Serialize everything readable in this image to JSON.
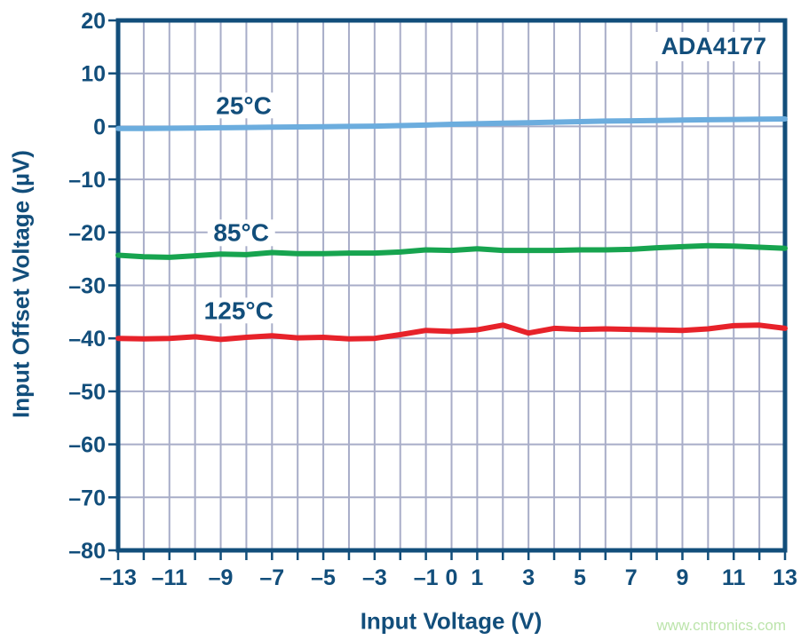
{
  "watermark": {
    "text": "www.cntronics.com",
    "color": "#bce4ab"
  },
  "chart_data": {
    "type": "line",
    "title": "ADA4177",
    "xlabel": "Input Voltage (V)",
    "ylabel": "Input Offset Voltage (µV)",
    "xlim": [
      -13,
      13
    ],
    "ylim": [
      -80,
      20
    ],
    "grid": {
      "on": true,
      "x_step": 1,
      "y_step": 10,
      "color": "#a8adc8"
    },
    "axis_color": "#124e7b",
    "legend": "inline-labels",
    "x_tick_values": [
      -13,
      -11,
      -9,
      -7,
      -5,
      -3,
      -1,
      0,
      1,
      3,
      5,
      7,
      9,
      11,
      13
    ],
    "x_tick_labels": [
      "–13",
      "–11",
      "–9",
      "–7",
      "–5",
      "–3",
      "–1",
      "0",
      "1",
      "3",
      "5",
      "7",
      "9",
      "11",
      "13"
    ],
    "y_tick_values": [
      20,
      10,
      0,
      -10,
      -20,
      -30,
      -40,
      -50,
      -60,
      -70,
      -80
    ],
    "y_tick_labels": [
      "20",
      "10",
      "0",
      "–10",
      "–20",
      "–30",
      "–40",
      "–50",
      "–60",
      "–70",
      "–80"
    ],
    "x": [
      -13,
      -12,
      -11,
      -10,
      -9,
      -8,
      -7,
      -6,
      -5,
      -4,
      -3,
      -2,
      -1,
      0,
      1,
      2,
      3,
      4,
      5,
      6,
      7,
      8,
      9,
      10,
      11,
      12,
      13
    ],
    "series": [
      {
        "name": "25°C",
        "color": "#6cadde",
        "label_anchor": {
          "x": -8.1,
          "y": 4.0
        },
        "values": [
          -0.4,
          -0.4,
          -0.35,
          -0.3,
          -0.25,
          -0.2,
          -0.15,
          -0.1,
          -0.05,
          0.0,
          0.05,
          0.15,
          0.25,
          0.4,
          0.5,
          0.6,
          0.7,
          0.8,
          0.9,
          1.0,
          1.05,
          1.1,
          1.2,
          1.25,
          1.3,
          1.35,
          1.4
        ]
      },
      {
        "name": "85°C",
        "color": "#17a44f",
        "label_anchor": {
          "x": -8.2,
          "y": -20.1
        },
        "values": [
          -24.3,
          -24.6,
          -24.7,
          -24.4,
          -24.1,
          -24.2,
          -23.8,
          -24.0,
          -24.0,
          -23.9,
          -23.9,
          -23.7,
          -23.3,
          -23.4,
          -23.1,
          -23.4,
          -23.4,
          -23.4,
          -23.3,
          -23.3,
          -23.2,
          -22.9,
          -22.7,
          -22.5,
          -22.6,
          -22.8,
          -23.0
        ]
      },
      {
        "name": "125°C",
        "color": "#e7222a",
        "label_anchor": {
          "x": -8.3,
          "y": -34.7
        },
        "values": [
          -40.0,
          -40.1,
          -40.0,
          -39.7,
          -40.2,
          -39.8,
          -39.5,
          -39.9,
          -39.8,
          -40.1,
          -40.0,
          -39.3,
          -38.5,
          -38.7,
          -38.4,
          -37.5,
          -39.0,
          -38.1,
          -38.3,
          -38.2,
          -38.3,
          -38.4,
          -38.5,
          -38.2,
          -37.6,
          -37.5,
          -38.1
        ]
      }
    ]
  }
}
